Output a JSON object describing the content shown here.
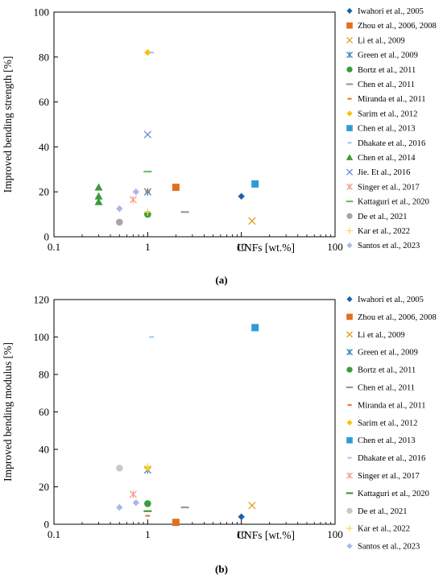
{
  "chart_data": [
    {
      "type": "scatter",
      "caption": "(a)",
      "xlabel": "CNFs [wt.%]",
      "ylabel": "Improved bending strength [%]",
      "xscale": "log",
      "xlim": [
        0.1,
        100
      ],
      "ylim": [
        0,
        100
      ],
      "xticks": [
        "0.1",
        "1",
        "10",
        "100"
      ],
      "yticks": [
        "0",
        "20",
        "40",
        "60",
        "80",
        "100"
      ],
      "grid": false,
      "legend": "right",
      "series": [
        {
          "name": "Iwahori et al., 2005",
          "marker": "diamond",
          "color": "#1f5fa8",
          "points": [
            [
              10,
              18
            ]
          ]
        },
        {
          "name": "Zhou et al., 2006, 2008",
          "marker": "square",
          "color": "#e07020",
          "points": [
            [
              2,
              22
            ]
          ]
        },
        {
          "name": "Li et al., 2009",
          "marker": "x",
          "color": "#e0a020",
          "points": [
            [
              13,
              7
            ]
          ]
        },
        {
          "name": "Green et al., 2009",
          "marker": "star",
          "color": "#3d88c0",
          "points": [
            [
              1,
              20
            ]
          ]
        },
        {
          "name": "Bortz et al., 2011",
          "marker": "circle",
          "color": "#3d9a3d",
          "points": [
            [
              1,
              10
            ]
          ]
        },
        {
          "name": "Chen et al., 2011",
          "marker": "dash",
          "color": "#999999",
          "points": [
            [
              2.5,
              11
            ]
          ]
        },
        {
          "name": "Miranda et al., 2011",
          "marker": "dash-short",
          "color": "#f07020",
          "points": [
            [
              1,
              20
            ]
          ]
        },
        {
          "name": "Sarim et al., 2012",
          "marker": "diamond",
          "color": "#ffc000",
          "points": [
            [
              1,
              82
            ]
          ]
        },
        {
          "name": "Chen et al., 2013",
          "marker": "square",
          "color": "#2e9bd6",
          "points": [
            [
              14,
              23.5
            ]
          ]
        },
        {
          "name": "Dhakate et al., 2016",
          "marker": "dash-short",
          "color": "#9cc8ee",
          "points": [
            [
              1.1,
              82
            ]
          ]
        },
        {
          "name": "Chen et al., 2014",
          "marker": "triangle",
          "color": "#3d9a3d",
          "points": [
            [
              0.3,
              22
            ],
            [
              0.3,
              18
            ],
            [
              0.3,
              15.5
            ]
          ]
        },
        {
          "name": "Jie. Et al., 2016",
          "marker": "x",
          "color": "#6a8fd8",
          "points": [
            [
              1,
              45.5
            ]
          ]
        },
        {
          "name": "Singer et al., 2017",
          "marker": "star",
          "color": "#f4a08c",
          "points": [
            [
              0.7,
              16.5
            ]
          ]
        },
        {
          "name": "Kattaguri et al., 2020",
          "marker": "dash",
          "color": "#6bc26b",
          "points": [
            [
              1,
              29
            ]
          ]
        },
        {
          "name": "De et al., 2021",
          "marker": "circle",
          "color": "#a6a6a6",
          "points": [
            [
              0.5,
              6.5
            ]
          ]
        },
        {
          "name": "Kar et al., 2022",
          "marker": "plus",
          "color": "#ffd966",
          "points": [
            [
              1,
              11
            ]
          ]
        },
        {
          "name": "Santos et al., 2023",
          "marker": "diamond",
          "color": "#a9b8e8",
          "points": [
            [
              0.5,
              12.5
            ],
            [
              0.75,
              20
            ]
          ]
        }
      ]
    },
    {
      "type": "scatter",
      "caption": "(b)",
      "xlabel": "CNFs [wt.%]",
      "ylabel": "Improved bending modulus [%]",
      "xscale": "log",
      "xlim": [
        0.1,
        100
      ],
      "ylim": [
        0,
        120
      ],
      "xticks": [
        "0.1",
        "1",
        "10",
        "100"
      ],
      "yticks": [
        "0",
        "20",
        "40",
        "60",
        "80",
        "100",
        "120"
      ],
      "grid": false,
      "legend": "right",
      "series": [
        {
          "name": "Iwahori et al., 2005",
          "marker": "diamond",
          "color": "#1f5fa8",
          "points": [
            [
              10,
              4
            ]
          ]
        },
        {
          "name": "Zhou et al., 2006, 2008",
          "marker": "square",
          "color": "#e07020",
          "points": [
            [
              2,
              1
            ]
          ]
        },
        {
          "name": "Li et al., 2009",
          "marker": "x",
          "color": "#e0a020",
          "points": [
            [
              13,
              10
            ]
          ]
        },
        {
          "name": "Green et al., 2009",
          "marker": "star",
          "color": "#3d88c0",
          "points": [
            [
              1,
              29
            ]
          ]
        },
        {
          "name": "Bortz et al., 2011",
          "marker": "circle",
          "color": "#3d9a3d",
          "points": [
            [
              1,
              11
            ]
          ]
        },
        {
          "name": "Chen et al., 2011",
          "marker": "dash",
          "color": "#999999",
          "points": [
            [
              2.5,
              9
            ]
          ]
        },
        {
          "name": "Miranda et al., 2011",
          "marker": "dash-short",
          "color": "#f07020",
          "points": [
            [
              1,
              4.5
            ]
          ]
        },
        {
          "name": "Sarim et al., 2012",
          "marker": "diamond",
          "color": "#ffc000",
          "points": [
            [
              1,
              30
            ]
          ]
        },
        {
          "name": "Chen et al., 2013",
          "marker": "square",
          "color": "#2e9bd6",
          "points": [
            [
              14,
              105
            ]
          ]
        },
        {
          "name": "Dhakate et al., 2016",
          "marker": "dash-short",
          "color": "#9cc8ee",
          "points": [
            [
              1.1,
              100
            ]
          ]
        },
        {
          "name": "Singer et al., 2017",
          "marker": "star",
          "color": "#f4a08c",
          "points": [
            [
              0.7,
              16
            ]
          ]
        },
        {
          "name": "Kattaguri et al., 2020",
          "marker": "dash",
          "color": "#3d9a3d",
          "points": [
            [
              1,
              7
            ]
          ]
        },
        {
          "name": "De et al., 2021",
          "marker": "circle",
          "color": "#c8c8c8",
          "points": [
            [
              0.5,
              30
            ]
          ]
        },
        {
          "name": "Kar et al., 2022",
          "marker": "plus",
          "color": "#ffd966",
          "points": [
            [
              1,
              31
            ]
          ]
        },
        {
          "name": "Santos et al., 2023",
          "marker": "diamond",
          "color": "#a9b8e8",
          "points": [
            [
              0.5,
              9
            ],
            [
              0.75,
              11.5
            ]
          ]
        }
      ]
    }
  ]
}
